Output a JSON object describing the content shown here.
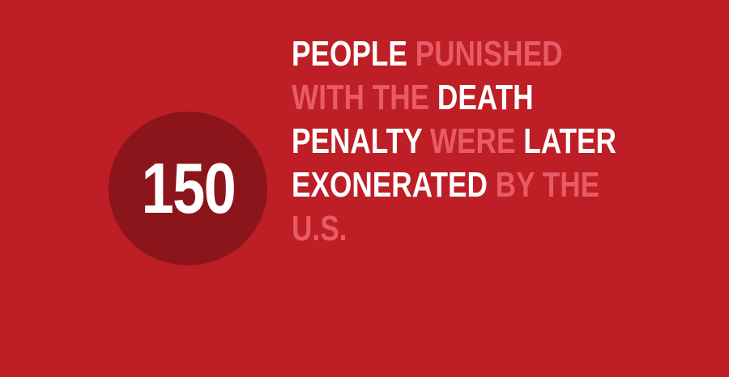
{
  "badge": {
    "number": "150"
  },
  "headline": {
    "lines": [
      [
        {
          "text": "PEOPLE",
          "style": "strong"
        },
        {
          "text": "PUNISHED",
          "style": "soft"
        }
      ],
      [
        {
          "text": "WITH THE",
          "style": "soft"
        },
        {
          "text": "DEATH",
          "style": "strong"
        }
      ],
      [
        {
          "text": "PENALTY",
          "style": "strong"
        },
        {
          "text": "WERE",
          "style": "soft"
        },
        {
          "text": "LATER",
          "style": "strong"
        }
      ],
      [
        {
          "text": "EXONERATED",
          "style": "strong"
        },
        {
          "text": "BY THE",
          "style": "soft"
        }
      ],
      [
        {
          "text": "U.S.",
          "style": "soft"
        }
      ]
    ]
  },
  "colors": {
    "background": "#BE1E25",
    "badge": "#8C151B",
    "strong_text": "#FFFFFF",
    "soft_text": "#E85A66"
  }
}
